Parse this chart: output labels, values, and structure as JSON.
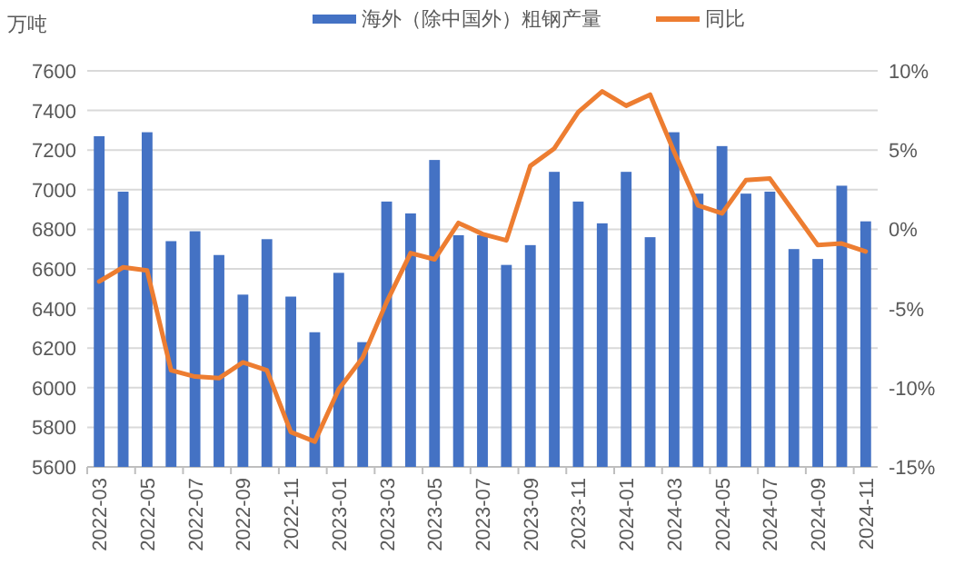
{
  "chart_data": {
    "type": "bar",
    "ylabel": "万吨",
    "categories": [
      "2022-03",
      null,
      "2022-05",
      null,
      "2022-07",
      null,
      "2022-09",
      null,
      "2022-11",
      null,
      "2023-01",
      null,
      "2023-03",
      null,
      "2023-05",
      null,
      "2023-07",
      null,
      "2023-09",
      null,
      "2023-11",
      null,
      "2024-01",
      null,
      "2024-03",
      null,
      "2024-05",
      null,
      "2024-07",
      null,
      "2024-09",
      null,
      "2024-11"
    ],
    "series": [
      {
        "name": "海外（除中国外）粗钢产量",
        "color": "#4472c4",
        "values": [
          7270,
          6990,
          7290,
          6740,
          6790,
          6670,
          6470,
          6750,
          6460,
          6280,
          6580,
          6230,
          6940,
          6880,
          7150,
          6770,
          6770,
          6620,
          6720,
          7090,
          6940,
          6830,
          7090,
          6760,
          7290,
          6980,
          7220,
          6980,
          6990,
          6700,
          6650,
          7020,
          6840
        ]
      },
      {
        "name": "同比",
        "type": "line",
        "axis": "y2",
        "color": "#ed7d31",
        "values": [
          -3.3,
          -2.4,
          -2.6,
          -8.9,
          -9.3,
          -9.4,
          -8.4,
          -8.9,
          -12.8,
          -13.4,
          -10.1,
          -8.1,
          -4.6,
          -1.5,
          -1.9,
          0.4,
          -0.3,
          -0.7,
          4.0,
          5.1,
          7.4,
          8.7,
          7.8,
          8.5,
          4.9,
          1.5,
          1.0,
          3.1,
          3.2,
          1.1,
          -1.0,
          -0.9,
          -1.4
        ]
      }
    ],
    "ylim": [
      5600,
      7600
    ],
    "yticks": [
      5600,
      5800,
      6000,
      6200,
      6400,
      6600,
      6800,
      7000,
      7200,
      7400,
      7600
    ],
    "y2lim": [
      -15,
      10
    ],
    "y2ticks": [
      {
        "value": -15,
        "label": "-15%"
      },
      {
        "value": -10,
        "label": "-10%"
      },
      {
        "value": -5,
        "label": "-5%"
      },
      {
        "value": 0,
        "label": "0%"
      },
      {
        "value": 5,
        "label": "5%"
      },
      {
        "value": 10,
        "label": "10%"
      }
    ],
    "grid": "y",
    "legend": "top",
    "marker": "none",
    "line_style": "solid"
  }
}
